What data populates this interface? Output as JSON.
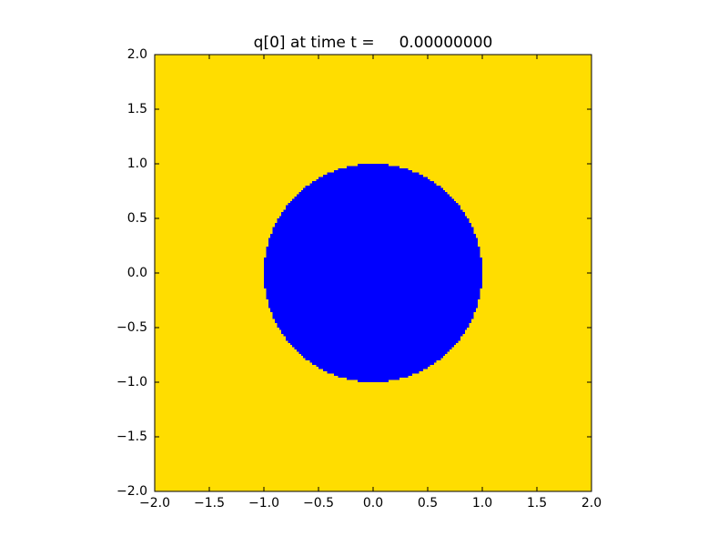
{
  "chart_data": {
    "type": "heatmap",
    "title": "q[0] at time t =     0.00000000",
    "xlabel": "",
    "ylabel": "",
    "xlim": [
      -2.0,
      2.0
    ],
    "ylim": [
      -2.0,
      2.0
    ],
    "xticks": [
      -2.0,
      -1.5,
      -1.0,
      -0.5,
      0.0,
      0.5,
      1.0,
      1.5,
      2.0
    ],
    "yticks": [
      -2.0,
      -1.5,
      -1.0,
      -0.5,
      0.0,
      0.5,
      1.0,
      1.5,
      2.0
    ],
    "xtick_labels": [
      "−2.0",
      "−1.5",
      "−1.0",
      "−0.5",
      "0.0",
      "0.5",
      "1.0",
      "1.5",
      "2.0"
    ],
    "ytick_labels": [
      "−2.0",
      "−1.5",
      "−1.0",
      "−0.5",
      "0.0",
      "0.5",
      "1.0",
      "1.5",
      "2.0"
    ],
    "grid": false,
    "field": {
      "background_value": "outside",
      "background_color": "#ffdd00",
      "region": {
        "shape": "disk",
        "center": [
          0.0,
          0.0
        ],
        "radius": 1.0,
        "color": "#0000ff"
      },
      "grid_cells": 200
    }
  }
}
